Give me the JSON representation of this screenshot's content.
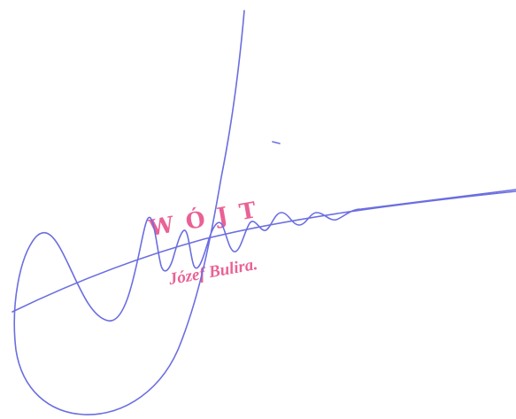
{
  "stamp": {
    "title": "WÓJT",
    "name": "Józef Bulira."
  },
  "colors": {
    "stamp": "#e8508a",
    "ink": "#6b6ee0",
    "background": "#ffffff"
  }
}
